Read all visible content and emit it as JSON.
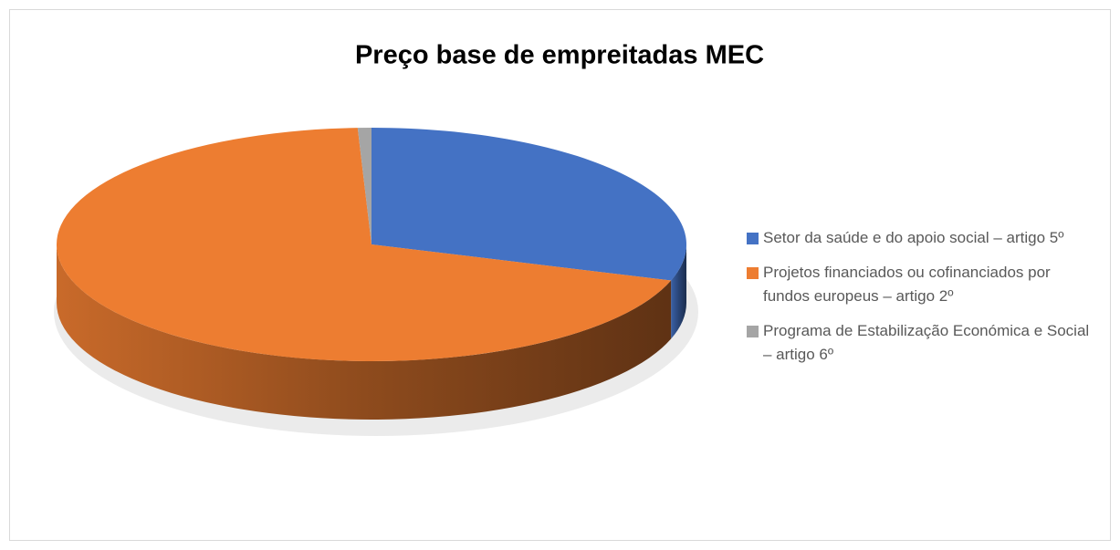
{
  "chart_data": {
    "type": "pie",
    "title": "Preço base de empreitadas MEC",
    "categories": [
      "Setor da saúde e do apoio social – artigo 5º",
      "Projetos financiados ou cofinanciados por fundos europeus – artigo 2º",
      "Programa de Estabilização Económica e Social – artigo 6º"
    ],
    "values": [
      30,
      69.3,
      0.7
    ],
    "colors": [
      "#4472c4",
      "#ed7d31",
      "#a5a5a5"
    ],
    "legend": "right"
  }
}
